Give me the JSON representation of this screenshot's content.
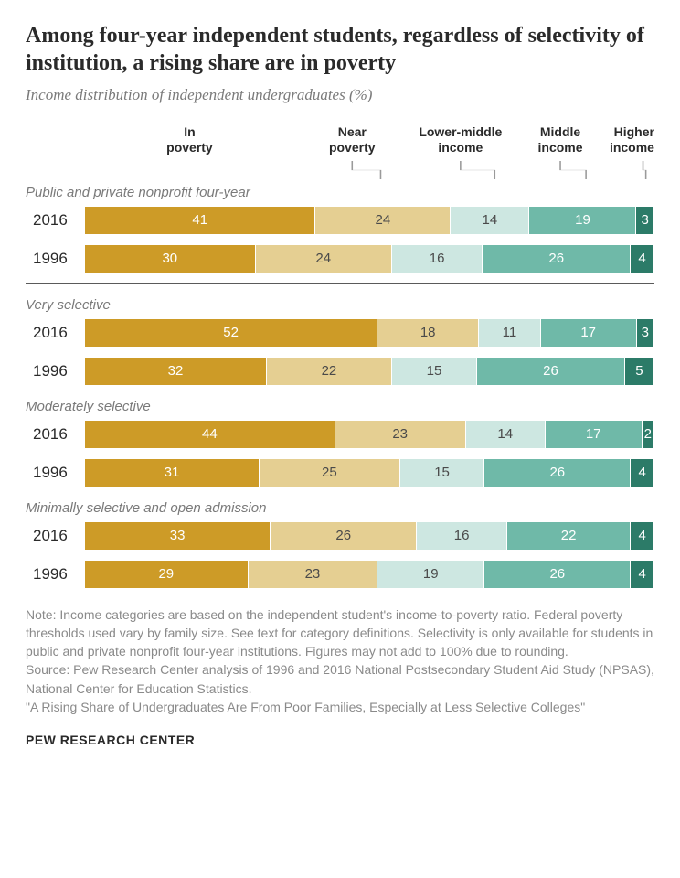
{
  "title": "Among four-year independent students, regardless of selectivity of institution, a rising share are in poverty",
  "subtitle": "Income distribution of independent undergraduates (%)",
  "columns": [
    {
      "label_line1": "In",
      "label_line2": "poverty",
      "width_pct": 37,
      "align": "center"
    },
    {
      "label_line1": "Near",
      "label_line2": "poverty",
      "width_pct": 20,
      "align": "center"
    },
    {
      "label_line1": "Lower-middle",
      "label_line2": "income",
      "width_pct": 18,
      "align": "center"
    },
    {
      "label_line1": "Middle",
      "label_line2": "income",
      "width_pct": 17,
      "align": "center"
    },
    {
      "label_line1": "Higher",
      "label_line2": "income",
      "width_pct": 8,
      "align": "right"
    }
  ],
  "colors": {
    "in_poverty": "#cd9b27",
    "near_poverty": "#e5cf92",
    "lower_middle": "#cde7e1",
    "middle": "#6fb9a8",
    "higher": "#2c7b68",
    "text_light": "#ffffff",
    "text_dark": "#4a4a4a"
  },
  "groups": [
    {
      "label": "Public and private nonprofit four-year",
      "divider_after": true,
      "rows": [
        {
          "year": "2016",
          "values": [
            41,
            24,
            14,
            19,
            3
          ]
        },
        {
          "year": "1996",
          "values": [
            30,
            24,
            16,
            26,
            4
          ]
        }
      ]
    },
    {
      "label": "Very selective",
      "rows": [
        {
          "year": "2016",
          "values": [
            52,
            18,
            11,
            17,
            3
          ]
        },
        {
          "year": "1996",
          "values": [
            32,
            22,
            15,
            26,
            5
          ]
        }
      ]
    },
    {
      "label": "Moderately selective",
      "rows": [
        {
          "year": "2016",
          "values": [
            44,
            23,
            14,
            17,
            2
          ]
        },
        {
          "year": "1996",
          "values": [
            31,
            25,
            15,
            26,
            4
          ]
        }
      ]
    },
    {
      "label": "Minimally selective and open admission",
      "rows": [
        {
          "year": "2016",
          "values": [
            33,
            26,
            16,
            22,
            4
          ]
        },
        {
          "year": "1996",
          "values": [
            29,
            23,
            19,
            26,
            4
          ]
        }
      ]
    }
  ],
  "segment_text_colors": [
    "#ffffff",
    "#4a4a4a",
    "#4a4a4a",
    "#ffffff",
    "#ffffff"
  ],
  "notes": "Note: Income categories are based on the independent student's income-to-poverty ratio. Federal poverty thresholds used vary by family size. See text for category definitions. Selectivity is only available for students in public and private nonprofit four-year institutions. Figures may not add to 100% due to rounding.\nSource: Pew Research Center analysis of 1996 and 2016 National Postsecondary Student Aid Study (NPSAS), National Center for Education Statistics.\n\"A Rising Share of Undergraduates Are From Poor Families, Especially at Less Selective Colleges\"",
  "footer": "PEW RESEARCH CENTER"
}
